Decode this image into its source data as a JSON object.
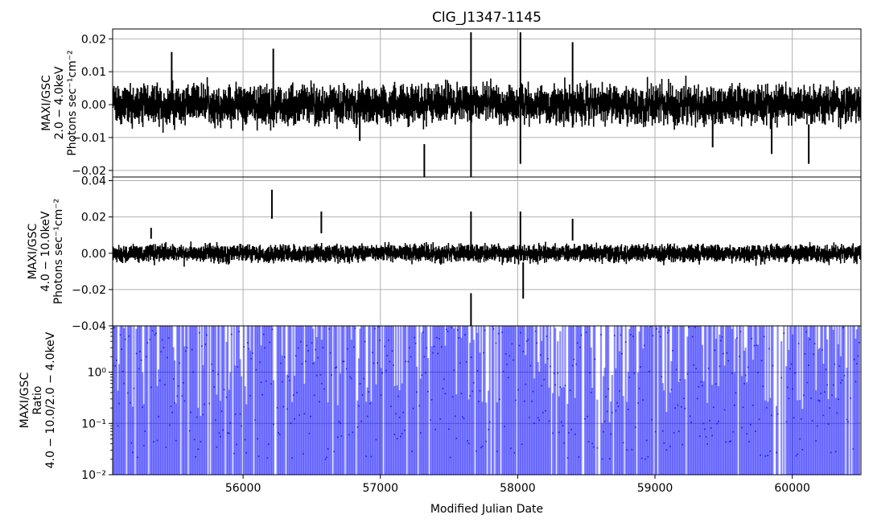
{
  "chart_data": {
    "type": "line",
    "title": "ClG_J1347-1145",
    "xlabel": "Modified Julian Date",
    "xlim": [
      55050,
      60500
    ],
    "x_ticks": [
      56000,
      57000,
      58000,
      59000,
      60000
    ],
    "x_tick_labels": [
      "56000",
      "57000",
      "58000",
      "59000",
      "60000"
    ],
    "grid": true,
    "panels": [
      {
        "name": "low-band",
        "ylabel_lines": [
          "MAXI/GSC",
          "2.0 − 4.0keV",
          "Photons sec⁻¹cm⁻²"
        ],
        "ylim": [
          -0.022,
          0.023
        ],
        "y_ticks": [
          -0.02,
          -0.01,
          0.0,
          0.01,
          0.02
        ],
        "y_tick_labels": [
          "−0.02",
          "−0.01",
          "0.00",
          "0.01",
          "0.02"
        ],
        "color": "#000000",
        "highlights": [
          {
            "x": 55480,
            "y": 0.009,
            "err": 0.007
          },
          {
            "x": 56220,
            "y": 0.006,
            "err": 0.011
          },
          {
            "x": 56850,
            "y": -0.006,
            "err": 0.005
          },
          {
            "x": 57320,
            "y": -0.02,
            "err": 0.008
          },
          {
            "x": 57660,
            "y": 0.0,
            "err": 0.022
          },
          {
            "x": 58020,
            "y": 0.002,
            "err": 0.02
          },
          {
            "x": 58400,
            "y": 0.006,
            "err": 0.013
          },
          {
            "x": 59420,
            "y": -0.007,
            "err": 0.006
          },
          {
            "x": 59850,
            "y": -0.009,
            "err": 0.006
          },
          {
            "x": 60120,
            "y": -0.012,
            "err": 0.006
          }
        ]
      },
      {
        "name": "high-band",
        "ylabel_lines": [
          "MAXI/GSC",
          "4.0 − 10.0keV",
          "Photons sec⁻¹cm⁻²"
        ],
        "ylim": [
          -0.04,
          0.042
        ],
        "y_ticks": [
          -0.04,
          -0.02,
          0.0,
          0.02,
          0.04
        ],
        "y_tick_labels": [
          "−0.04",
          "−0.02",
          "0.00",
          "0.02",
          "0.04"
        ],
        "color": "#000000",
        "highlights": [
          {
            "x": 55330,
            "y": 0.011,
            "err": 0.003
          },
          {
            "x": 56210,
            "y": 0.027,
            "err": 0.008
          },
          {
            "x": 56570,
            "y": 0.017,
            "err": 0.006
          },
          {
            "x": 57660,
            "y": 0.01,
            "err": 0.013
          },
          {
            "x": 57660,
            "y": -0.035,
            "err": 0.013
          },
          {
            "x": 58020,
            "y": 0.011,
            "err": 0.012
          },
          {
            "x": 58040,
            "y": -0.015,
            "err": 0.01
          },
          {
            "x": 58400,
            "y": 0.013,
            "err": 0.006
          }
        ]
      },
      {
        "name": "ratio",
        "ylabel_lines": [
          "MAXI/GSC",
          "Ratio",
          "4.0 − 10.0/2.0 − 4.0keV"
        ],
        "yscale": "log",
        "ylim": [
          0.01,
          8
        ],
        "y_ticks": [
          0.01,
          0.1,
          1.0
        ],
        "y_tick_labels": [
          "10⁻²",
          "10⁻¹",
          "10⁰"
        ],
        "color": "#0000ff"
      }
    ]
  }
}
